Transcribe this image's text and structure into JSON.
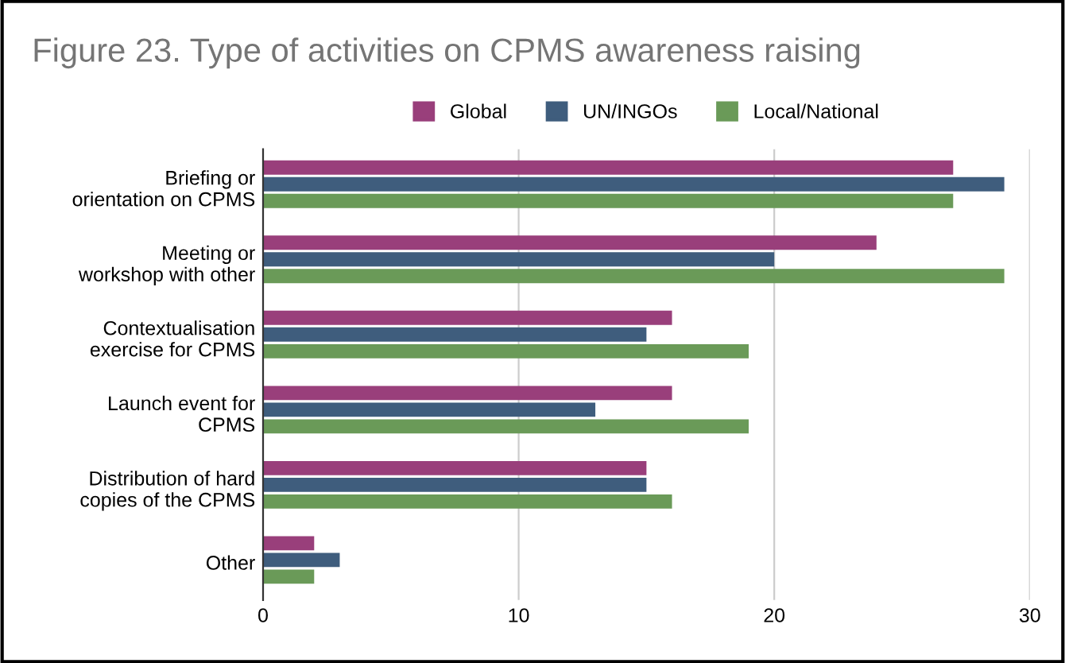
{
  "chart_data": {
    "type": "bar",
    "orientation": "horizontal",
    "title": "Figure 23. Type of activities on CPMS awareness raising",
    "categories": [
      "Briefing or\norientation on CPMS",
      "Meeting or\nworkshop with other",
      "Contextualisation\nexercise for CPMS",
      "Launch event for\nCPMS",
      "Distribution of hard\ncopies of the CPMS",
      "Other"
    ],
    "series": [
      {
        "name": "Global",
        "color": "#993f7b",
        "values": [
          27,
          24,
          16,
          16,
          15,
          2
        ]
      },
      {
        "name": "UN/INGOs",
        "color": "#3f5d7d",
        "values": [
          29,
          20,
          15,
          13,
          15,
          3
        ]
      },
      {
        "name": "Local/National",
        "color": "#6a9a58",
        "values": [
          27,
          29,
          19,
          19,
          16,
          2
        ]
      }
    ],
    "xlim": [
      0,
      30
    ],
    "xticks": [
      0,
      10,
      20,
      30
    ],
    "grid": "x",
    "legend": "top"
  }
}
